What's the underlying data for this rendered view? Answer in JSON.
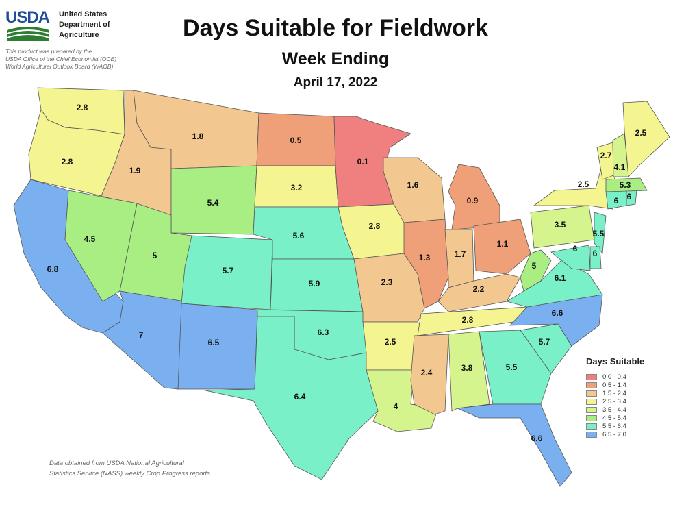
{
  "header": {
    "agency_abbrev": "USDA",
    "agency_name": [
      "United States",
      "Department of",
      "Agriculture"
    ],
    "prepared_by": [
      "This product was prepared by the",
      "USDA Office of the Chief Economist (OCE)",
      "World Agricultural Outlook Board (WAOB)"
    ],
    "title": "Days Suitable for Fieldwork",
    "subtitle": "Week Ending",
    "date": "April 17, 2022"
  },
  "legend": {
    "title": "Days Suitable",
    "classes": [
      {
        "label": "0.0 - 0.4",
        "color": "#f08080"
      },
      {
        "label": "0.5 - 1.4",
        "color": "#f0a078"
      },
      {
        "label": "1.5 - 2.4",
        "color": "#f2c890"
      },
      {
        "label": "2.5 - 3.4",
        "color": "#f4f491"
      },
      {
        "label": "3.5 - 4.4",
        "color": "#d6f48e"
      },
      {
        "label": "4.5 - 5.4",
        "color": "#a8ee82"
      },
      {
        "label": "5.5 - 6.4",
        "color": "#7af0c8"
      },
      {
        "label": "6.5 - 7.0",
        "color": "#7ab0f0"
      }
    ]
  },
  "states": [
    {
      "id": "WA",
      "value": "2.8"
    },
    {
      "id": "OR",
      "value": "2.8"
    },
    {
      "id": "CA",
      "value": "6.8"
    },
    {
      "id": "ID",
      "value": "1.9"
    },
    {
      "id": "NV",
      "value": "4.5"
    },
    {
      "id": "MT",
      "value": "1.8"
    },
    {
      "id": "WY",
      "value": "5.4"
    },
    {
      "id": "UT",
      "value": "5"
    },
    {
      "id": "AZ",
      "value": "7"
    },
    {
      "id": "CO",
      "value": "5.7"
    },
    {
      "id": "NM",
      "value": "6.5"
    },
    {
      "id": "ND",
      "value": "0.5"
    },
    {
      "id": "SD",
      "value": "3.2"
    },
    {
      "id": "NE",
      "value": "5.6"
    },
    {
      "id": "KS",
      "value": "5.9"
    },
    {
      "id": "OK",
      "value": "6.3"
    },
    {
      "id": "TX",
      "value": "6.4"
    },
    {
      "id": "MN",
      "value": "0.1"
    },
    {
      "id": "IA",
      "value": "2.8"
    },
    {
      "id": "MO",
      "value": "2.3"
    },
    {
      "id": "AR",
      "value": "2.5"
    },
    {
      "id": "LA",
      "value": "4"
    },
    {
      "id": "WI",
      "value": "1.6"
    },
    {
      "id": "IL",
      "value": "1.3"
    },
    {
      "id": "MI",
      "value": "0.9"
    },
    {
      "id": "IN",
      "value": "1.7"
    },
    {
      "id": "OH",
      "value": "1.1"
    },
    {
      "id": "KY",
      "value": "2.2"
    },
    {
      "id": "TN",
      "value": "2.8"
    },
    {
      "id": "MS",
      "value": "2.4"
    },
    {
      "id": "AL",
      "value": "3.8"
    },
    {
      "id": "GA",
      "value": "5.5"
    },
    {
      "id": "FL",
      "value": "6.6"
    },
    {
      "id": "SC",
      "value": "5.7"
    },
    {
      "id": "NC",
      "value": "6.6"
    },
    {
      "id": "VA",
      "value": "6.1"
    },
    {
      "id": "WV",
      "value": "5"
    },
    {
      "id": "PA",
      "value": "3.5"
    },
    {
      "id": "NY",
      "value": "2.5"
    },
    {
      "id": "NJ",
      "value": "5.5"
    },
    {
      "id": "DE",
      "value": "6"
    },
    {
      "id": "MD",
      "value": "6"
    },
    {
      "id": "CT",
      "value": "6"
    },
    {
      "id": "RI",
      "value": "6"
    },
    {
      "id": "MA",
      "value": "5.3"
    },
    {
      "id": "VT",
      "value": "2.7"
    },
    {
      "id": "NH",
      "value": "4.1"
    },
    {
      "id": "ME",
      "value": "2.5"
    }
  ],
  "source_note": [
    "Data obtained from USDA National Agricultural",
    "Statistics Service (NASS) weekly Crop Progress reports."
  ]
}
